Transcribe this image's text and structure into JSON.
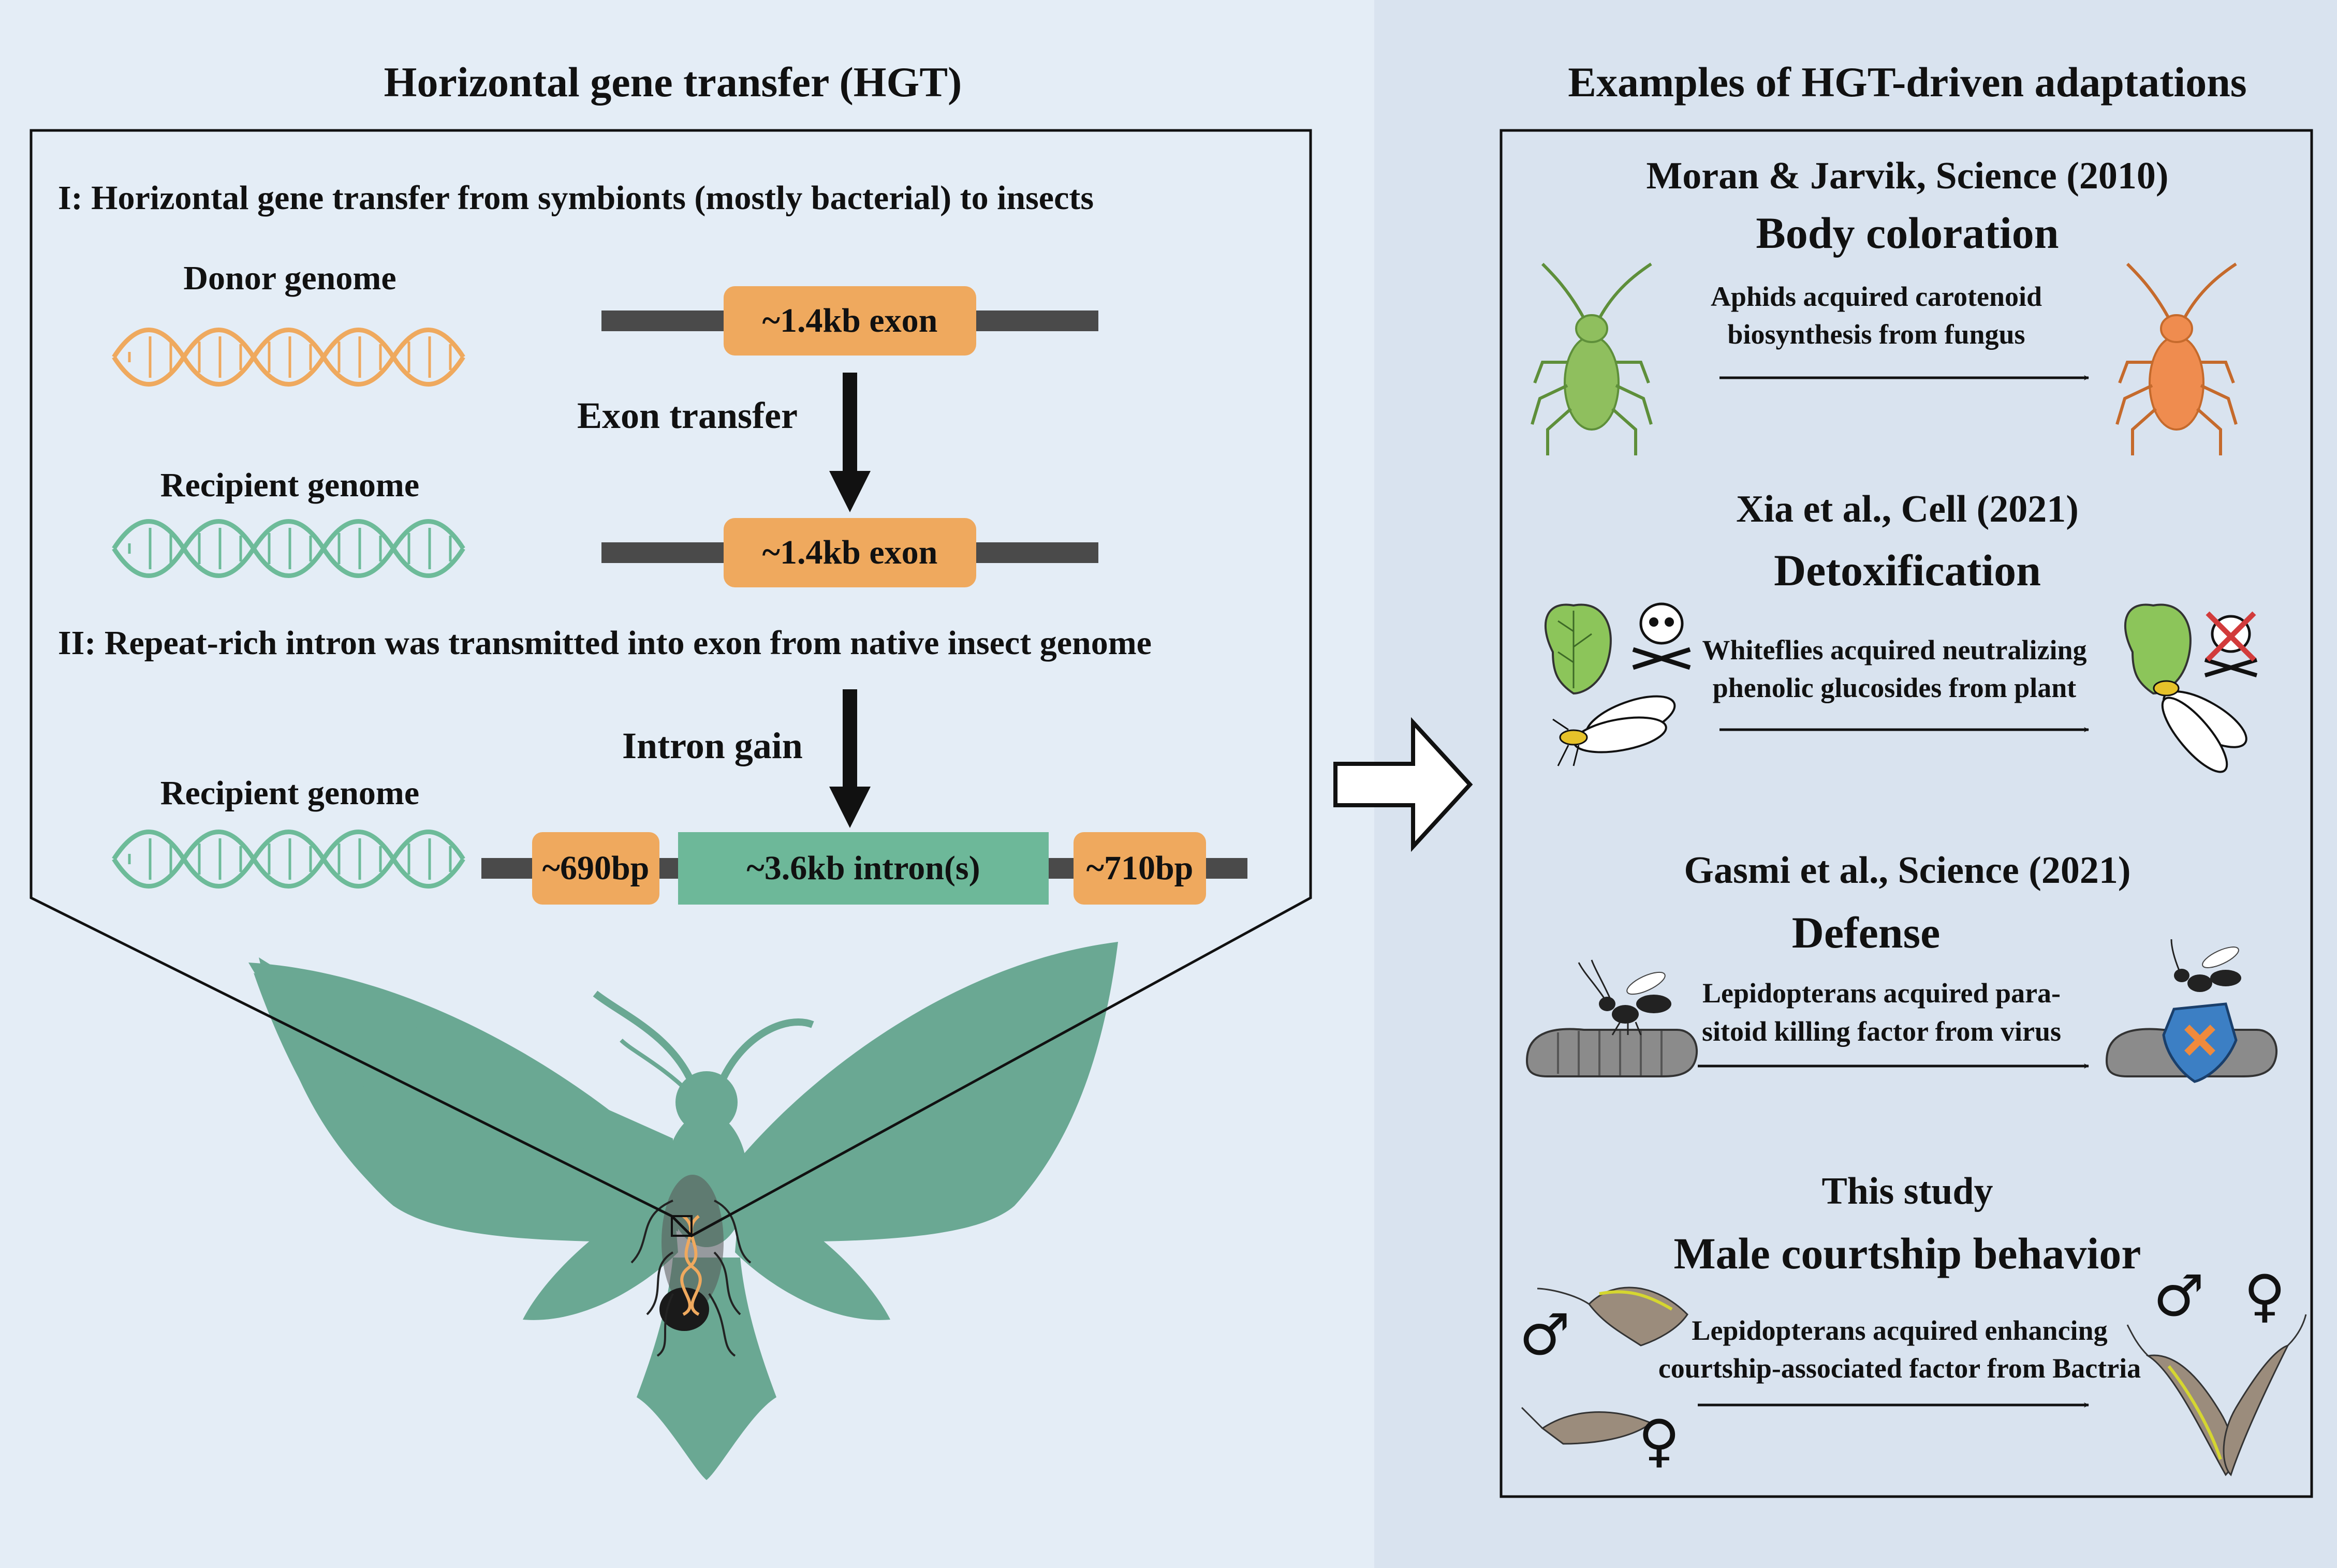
{
  "colors": {
    "left_bg": "#e4edf6",
    "right_bg": "#d9e3ef",
    "exon": "#efa95e",
    "intron": "#6db899",
    "donor_dna": "#efa95e",
    "recipient_dna": "#6dbb99",
    "chromosome_line": "#4a4a4a",
    "moth": "#6aa893",
    "frame": "#111111"
  },
  "left": {
    "title": "Horizontal gene transfer (HGT)",
    "section1": "I: Horizontal gene transfer from symbionts (mostly bacterial) to insects",
    "section2": "II: Repeat-rich intron was transmitted into exon from native insect genome",
    "donor_label": "Donor genome",
    "recipient_label_1": "Recipient genome",
    "recipient_label_2": "Recipient genome",
    "exon_donor": "~1.4kb exon",
    "exon_recipient": "~1.4kb exon",
    "exon_transfer": "Exon transfer",
    "intron_gain": "Intron gain",
    "seg_690": "~690bp",
    "seg_intron": "~3.6kb intron(s)",
    "seg_710": "~710bp"
  },
  "right": {
    "title": "Examples of HGT-driven adaptations",
    "examples": [
      {
        "citation": "Moran & Jarvik, Science (2010)",
        "trait": "Body coloration",
        "line1": "Aphids acquired carotenoid",
        "line2": "biosynthesis from fungus"
      },
      {
        "citation": "Xia et al., Cell (2021)",
        "trait": "Detoxification",
        "line1": "Whiteflies acquired neutralizing",
        "line2": "phenolic glucosides from plant"
      },
      {
        "citation": "Gasmi et al., Science (2021)",
        "trait": "Defense",
        "line1": "Lepidopterans acquired para-",
        "line2": "sitoid killing factor from virus"
      },
      {
        "citation": "This study",
        "trait": "Male courtship behavior",
        "line1": "Lepidopterans acquired enhancing",
        "line2": "courtship-associated factor from Bactria"
      }
    ],
    "male_symbol": "♂",
    "female_symbol": "♀"
  }
}
